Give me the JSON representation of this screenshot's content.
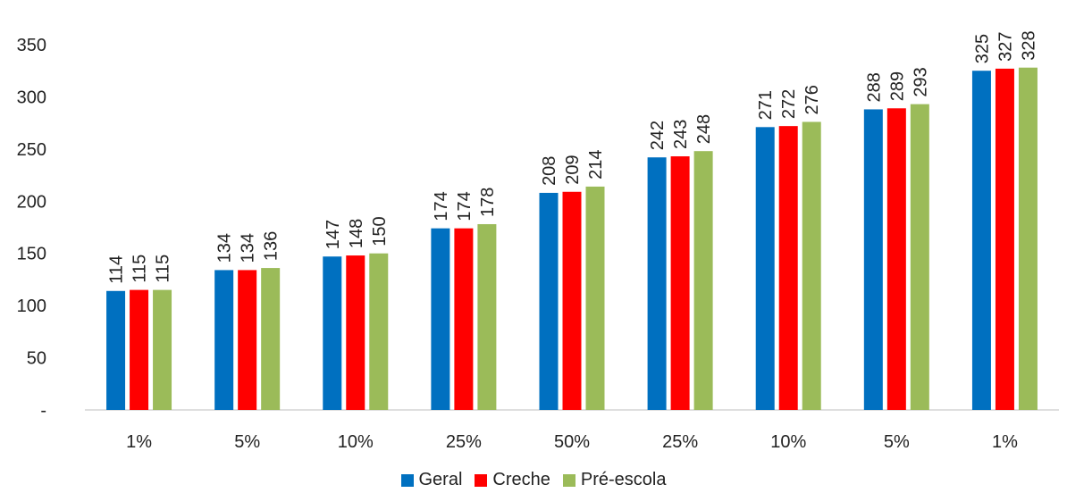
{
  "chart_data": {
    "type": "bar",
    "categories": [
      "1%",
      "5%",
      "10%",
      "25%",
      "50%",
      "25%",
      "10%",
      "5%",
      "1%"
    ],
    "series": [
      {
        "name": "Geral",
        "color": "#0070C0",
        "values": [
          114,
          134,
          147,
          174,
          208,
          242,
          271,
          288,
          325
        ]
      },
      {
        "name": "Creche",
        "color": "#FF0000",
        "values": [
          115,
          134,
          148,
          174,
          209,
          243,
          272,
          289,
          327
        ]
      },
      {
        "name": "Pré-escola",
        "color": "#9BBB59",
        "values": [
          115,
          136,
          150,
          178,
          214,
          248,
          276,
          293,
          328
        ]
      }
    ],
    "yticks": [
      "-",
      "50",
      "100",
      "150",
      "200",
      "250",
      "300",
      "350"
    ],
    "ylim": [
      0,
      350
    ],
    "legend_position": "bottom",
    "grid": false
  }
}
